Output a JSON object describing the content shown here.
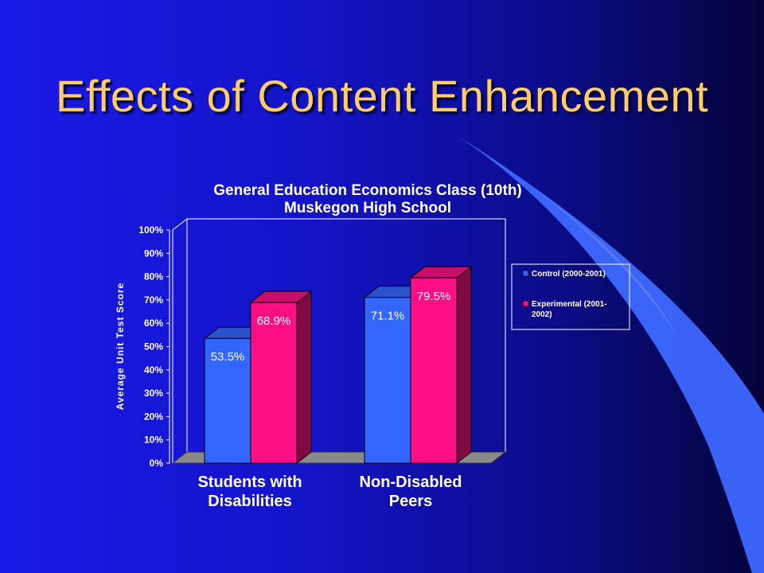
{
  "slide": {
    "title": "Effects of Content Enhancement"
  },
  "chart_data": {
    "type": "bar",
    "title": "General Education Economics Class (10th)",
    "subtitle": "Muskegon High School",
    "xlabel": "",
    "ylabel": "Average Unit Test Score",
    "categories": [
      "Students with Disabilities",
      "Non-Disabled Peers"
    ],
    "category_lines": [
      [
        "Students with",
        "Disabilities"
      ],
      [
        "Non-Disabled",
        "Peers"
      ]
    ],
    "series": [
      {
        "name": "Control (2000-2001)",
        "legend_lines": [
          "Control (2000-2001)"
        ],
        "values": [
          53.5,
          71.1
        ],
        "labels": [
          "53.5%",
          "71.1%"
        ],
        "color": "#3366ff"
      },
      {
        "name": "Experimental (2001-2002)",
        "legend_lines": [
          "Experimental (2001-",
          "2002)"
        ],
        "values": [
          68.9,
          79.5
        ],
        "labels": [
          "68.9%",
          "79.5%"
        ],
        "color": "#ff0f86"
      }
    ],
    "y_ticks": [
      "0%",
      "10%",
      "20%",
      "30%",
      "40%",
      "50%",
      "60%",
      "70%",
      "80%",
      "90%",
      "100%"
    ],
    "ylim": [
      0,
      100
    ],
    "grid": false,
    "legend_position": "right",
    "style": "3d"
  }
}
